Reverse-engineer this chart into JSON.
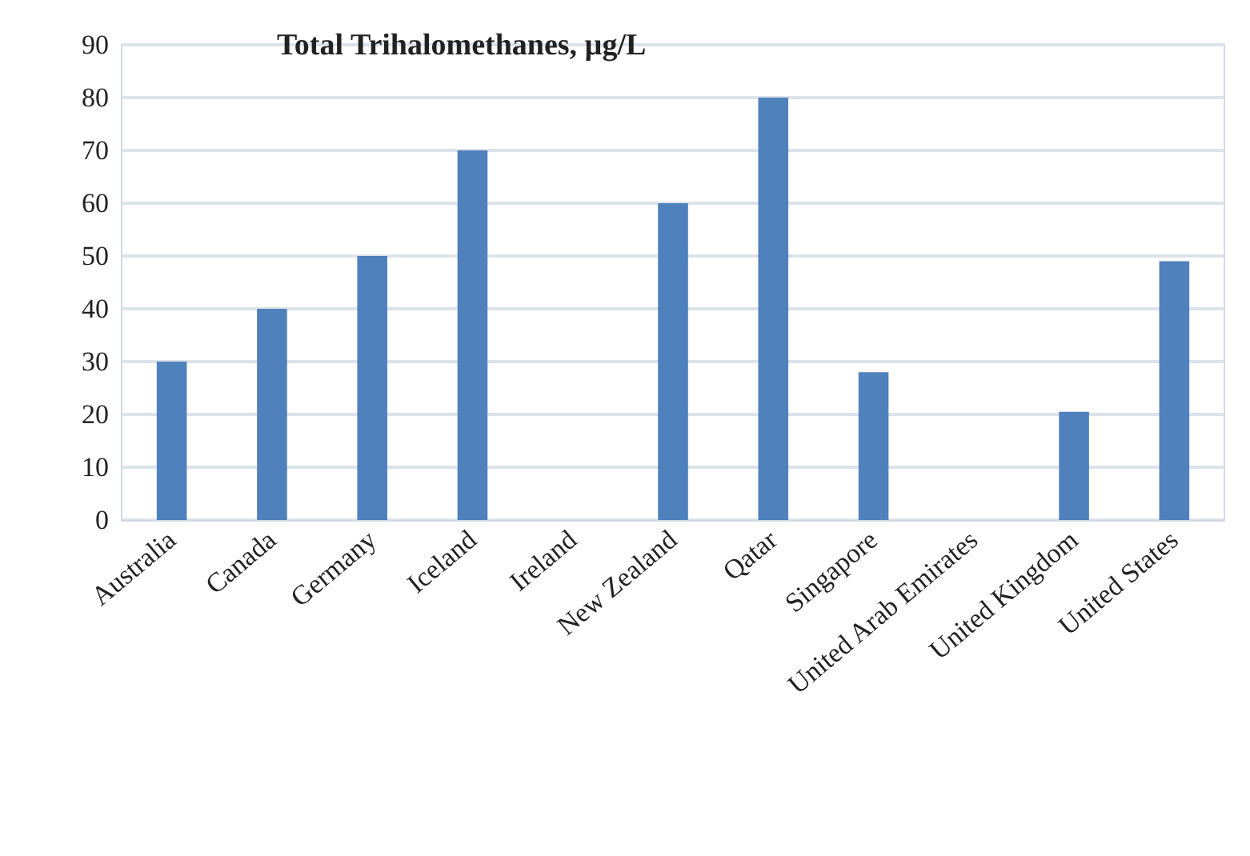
{
  "chart_data": {
    "type": "bar",
    "title": "Total Trihalomethanes, µg/L",
    "categories": [
      "Australia",
      "Canada",
      "Germany",
      "Iceland",
      "Ireland",
      "New Zealand",
      "Qatar",
      "Singapore",
      "United Arab Emirates",
      "United Kingdom",
      "United States"
    ],
    "values": [
      30,
      40,
      50,
      70,
      null,
      60,
      80,
      28,
      null,
      20.5,
      49
    ],
    "color": "#4f81bd",
    "ylim": [
      0,
      90
    ],
    "yticks": [
      0,
      10,
      20,
      30,
      40,
      50,
      60,
      70,
      80,
      90
    ],
    "grid": "y"
  }
}
